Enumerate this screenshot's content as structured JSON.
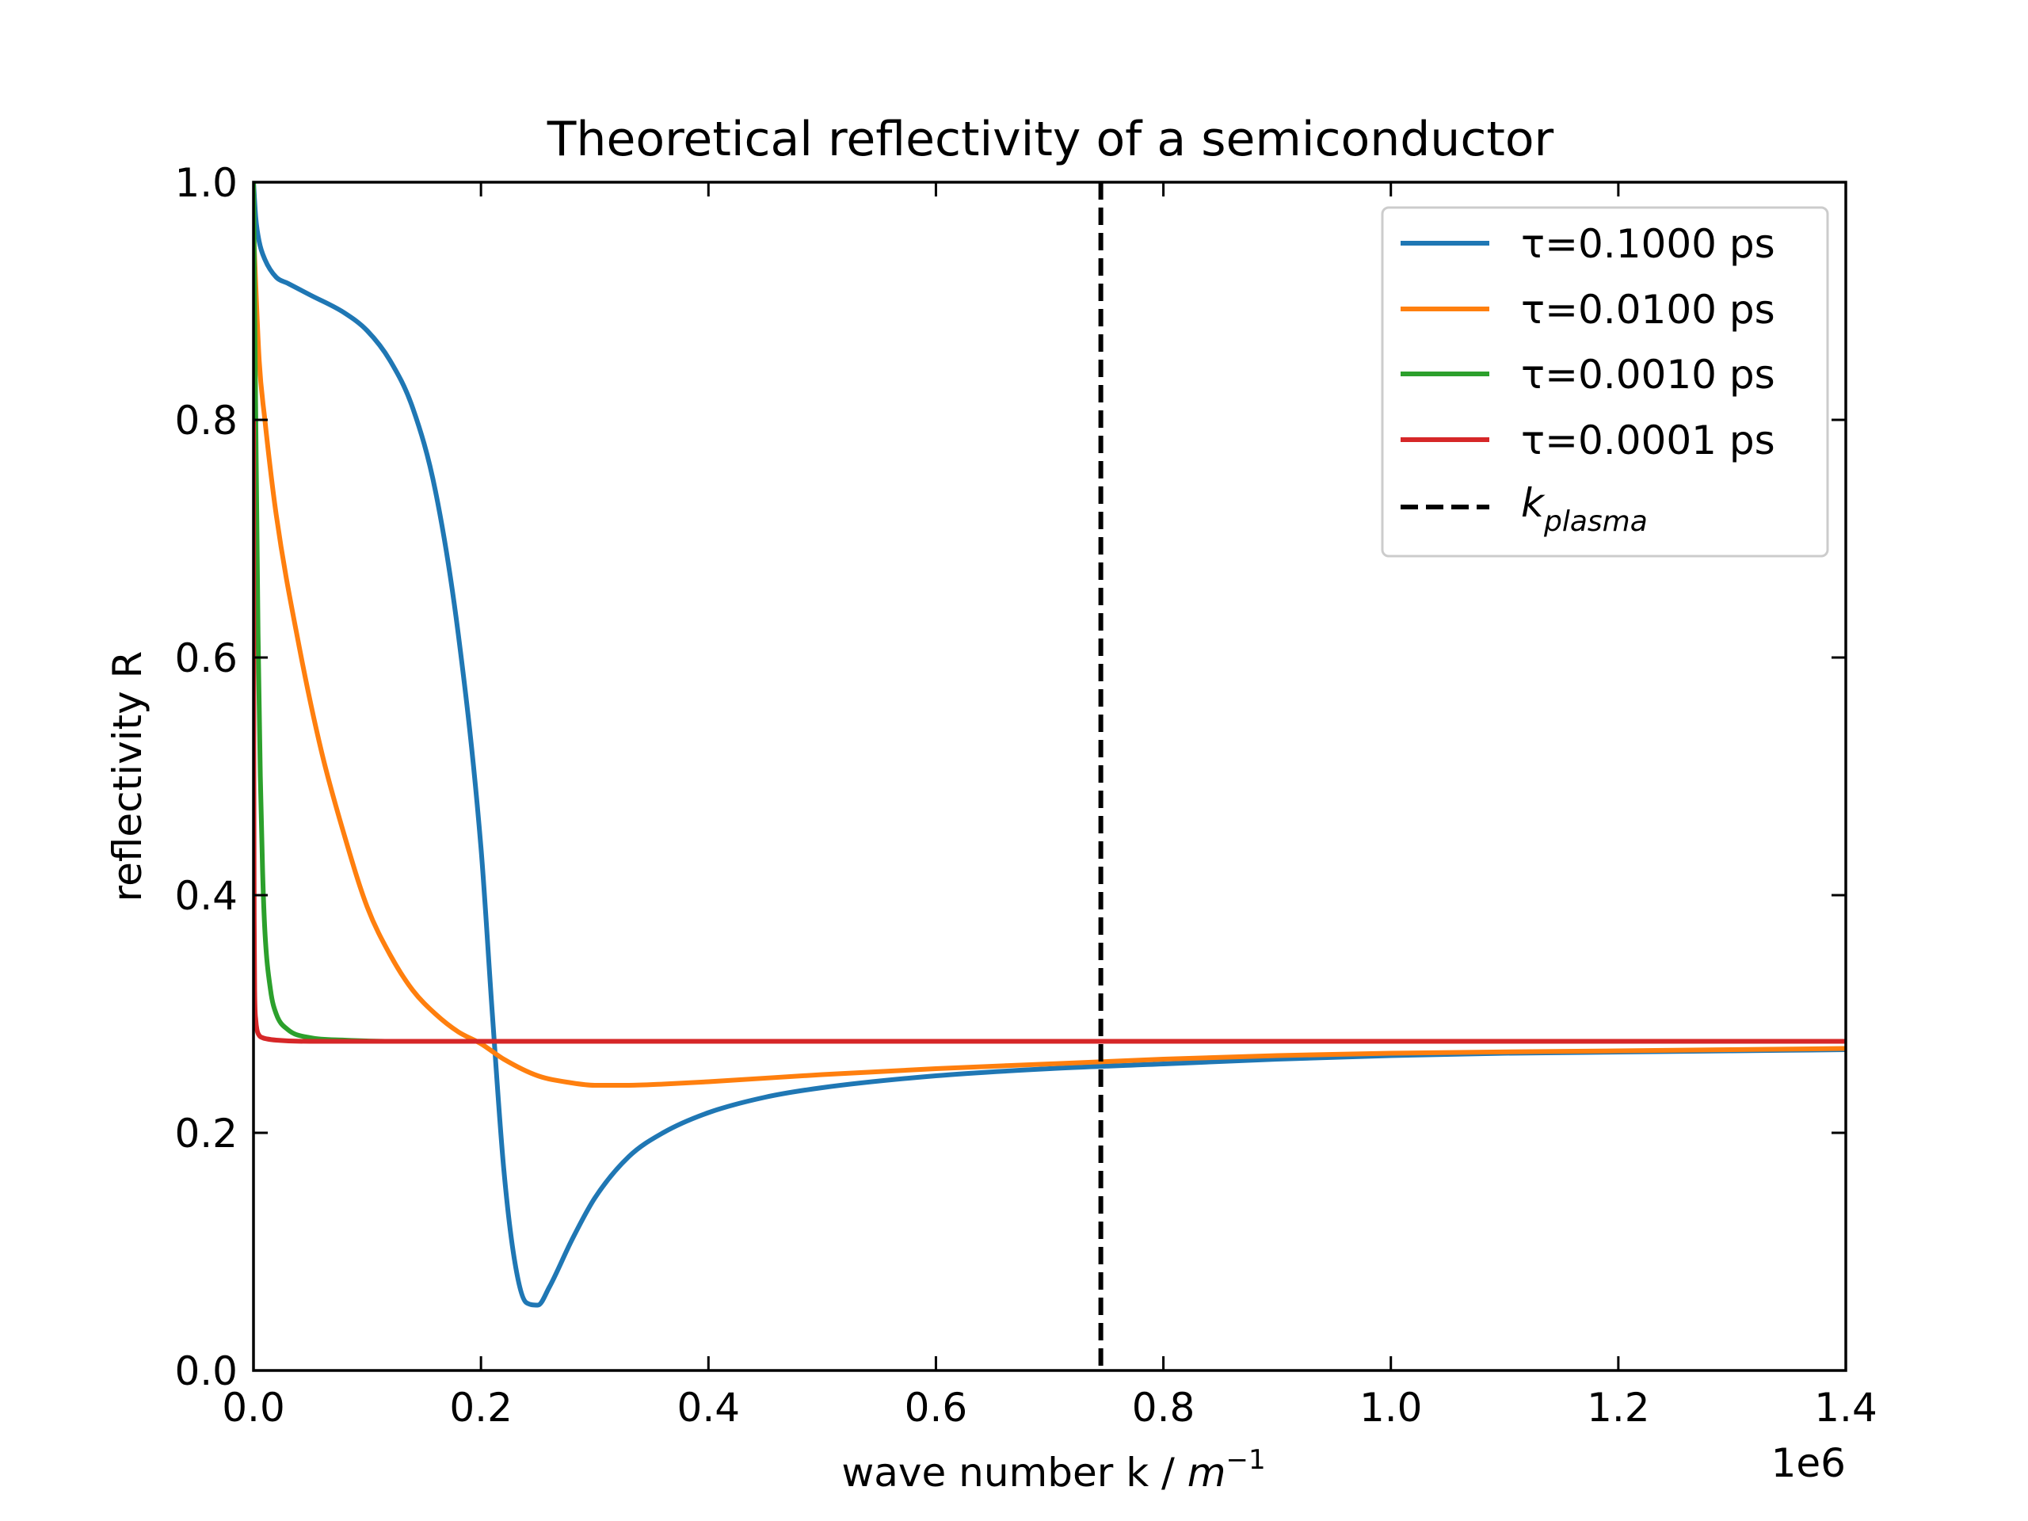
{
  "chart_data": {
    "type": "line",
    "title": "Theoretical reflectivity of a semiconductor",
    "xlabel": "wave number k / ",
    "xlabel_unit_base": "m",
    "xlabel_unit_exp": "−1",
    "x_offset_text": "1e6",
    "ylabel": "reflectivity R",
    "xlim": [
      0,
      1.4
    ],
    "ylim": [
      0,
      1.0
    ],
    "x_scale": 1000000,
    "xticks": [
      0.0,
      0.2,
      0.4,
      0.6,
      0.8,
      1.0,
      1.2,
      1.4
    ],
    "xtick_labels": [
      "0.0",
      "0.2",
      "0.4",
      "0.6",
      "0.8",
      "1.0",
      "1.2",
      "1.4"
    ],
    "yticks": [
      0.0,
      0.2,
      0.4,
      0.6,
      0.8,
      1.0
    ],
    "ytick_labels": [
      "0.0",
      "0.2",
      "0.4",
      "0.6",
      "0.8",
      "1.0"
    ],
    "grid": false,
    "legend_position": "top-right",
    "series": [
      {
        "name": "τ=0.1000 ps",
        "color": "#1f77b4",
        "x": [
          0.0,
          0.002,
          0.005,
          0.01,
          0.02,
          0.03,
          0.05,
          0.08,
          0.1,
          0.12,
          0.14,
          0.16,
          0.18,
          0.2,
          0.21,
          0.22,
          0.23,
          0.24,
          0.25,
          0.26,
          0.28,
          0.3,
          0.33,
          0.36,
          0.4,
          0.45,
          0.5,
          0.6,
          0.7,
          0.8,
          0.9,
          1.0,
          1.1,
          1.2,
          1.3,
          1.4
        ],
        "y": [
          1.0,
          0.97,
          0.95,
          0.935,
          0.92,
          0.915,
          0.905,
          0.89,
          0.875,
          0.85,
          0.81,
          0.74,
          0.62,
          0.44,
          0.3,
          0.17,
          0.09,
          0.057,
          0.055,
          0.07,
          0.11,
          0.145,
          0.18,
          0.2,
          0.217,
          0.23,
          0.238,
          0.248,
          0.254,
          0.258,
          0.262,
          0.265,
          0.267,
          0.268,
          0.269,
          0.27
        ]
      },
      {
        "name": "τ=0.0100 ps",
        "color": "#ff7f0e",
        "x": [
          0.0,
          0.005,
          0.01,
          0.02,
          0.04,
          0.06,
          0.08,
          0.1,
          0.12,
          0.14,
          0.16,
          0.18,
          0.2,
          0.22,
          0.25,
          0.28,
          0.3,
          0.33,
          0.36,
          0.4,
          0.5,
          0.6,
          0.7,
          0.8,
          0.9,
          1.0,
          1.2,
          1.4
        ],
        "y": [
          0.96,
          0.85,
          0.8,
          0.72,
          0.61,
          0.52,
          0.45,
          0.39,
          0.35,
          0.32,
          0.3,
          0.285,
          0.275,
          0.262,
          0.248,
          0.242,
          0.24,
          0.24,
          0.241,
          0.243,
          0.249,
          0.254,
          0.258,
          0.262,
          0.265,
          0.267,
          0.269,
          0.271
        ]
      },
      {
        "name": "τ=0.0010 ps",
        "color": "#2ca02c",
        "x": [
          0.0,
          0.001,
          0.002,
          0.004,
          0.006,
          0.008,
          0.01,
          0.015,
          0.02,
          0.03,
          0.05,
          0.08,
          0.12,
          0.2,
          0.4,
          0.8,
          1.4
        ],
        "y": [
          1.0,
          0.9,
          0.8,
          0.62,
          0.5,
          0.42,
          0.37,
          0.32,
          0.3,
          0.287,
          0.28,
          0.278,
          0.277,
          0.277,
          0.277,
          0.277,
          0.277
        ]
      },
      {
        "name": "τ=0.0001 ps",
        "color": "#d62728",
        "x": [
          0.0,
          0.0003,
          0.0006,
          0.001,
          0.002,
          0.003,
          0.005,
          0.008,
          0.012,
          0.02,
          0.05,
          0.2,
          0.6,
          1.0,
          1.4
        ],
        "y": [
          0.8,
          0.5,
          0.38,
          0.32,
          0.295,
          0.287,
          0.282,
          0.28,
          0.279,
          0.278,
          0.277,
          0.277,
          0.277,
          0.277,
          0.277
        ]
      }
    ],
    "vline": {
      "name_base": "k",
      "name_sub": "plasma",
      "x": 0.745,
      "color": "#000000",
      "style": "dashed"
    }
  }
}
